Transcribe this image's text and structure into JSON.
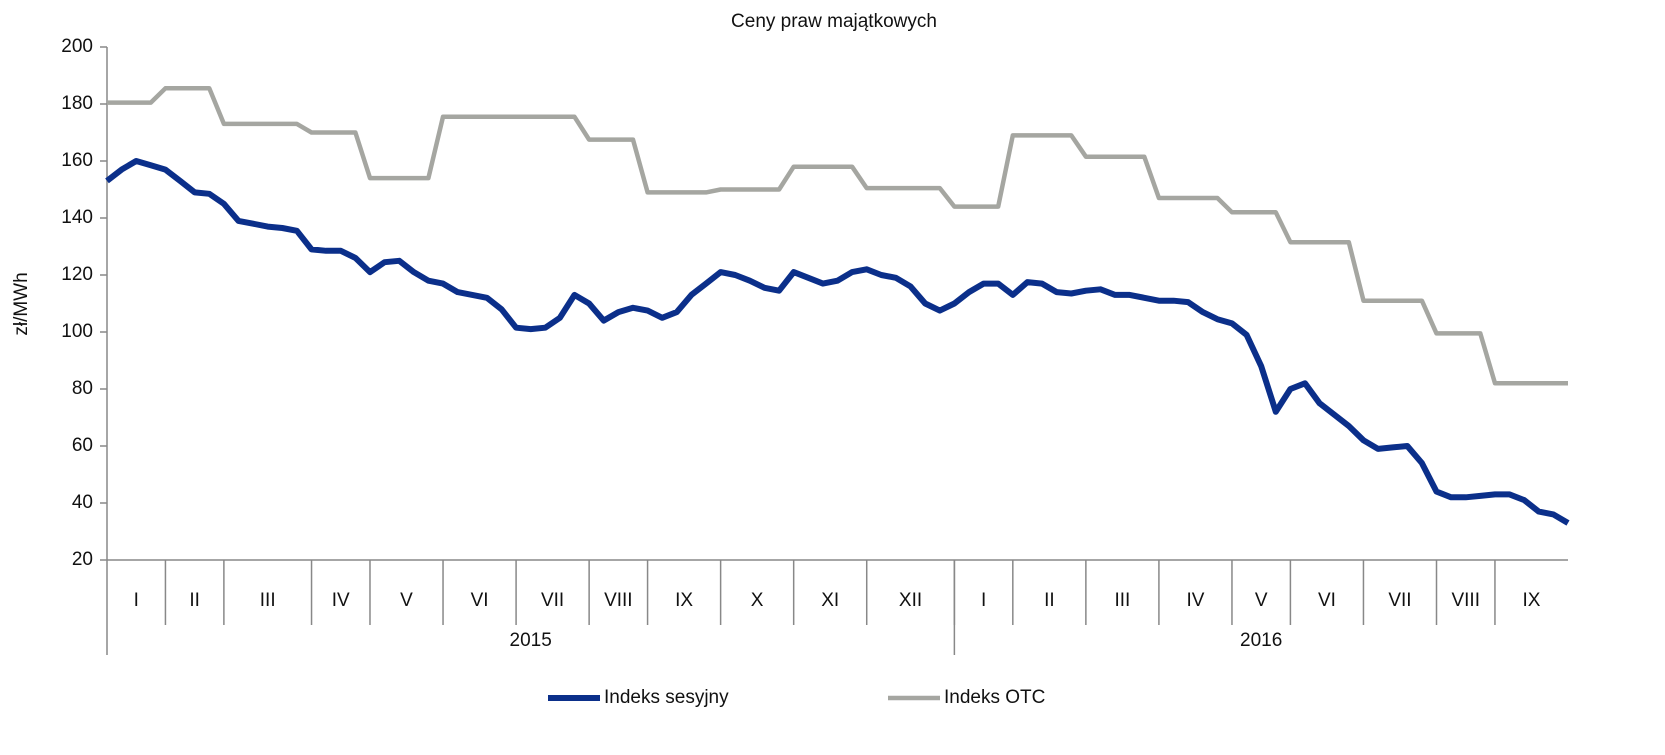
{
  "chart_data": {
    "type": "line",
    "title": "Ceny praw majątkowych",
    "y_label": "zł/MWh",
    "categories": [
      "I",
      null,
      null,
      null,
      "II",
      null,
      null,
      null,
      "III",
      null,
      null,
      null,
      null,
      null,
      "IV",
      null,
      null,
      null,
      "V",
      null,
      null,
      null,
      null,
      "VI",
      null,
      null,
      null,
      null,
      "VII",
      null,
      null,
      null,
      null,
      "VIII",
      null,
      null,
      null,
      "IX",
      null,
      null,
      null,
      null,
      "X",
      null,
      null,
      null,
      null,
      "XI",
      null,
      null,
      null,
      null,
      "XII",
      null,
      null,
      null,
      null,
      null,
      "I",
      null,
      null,
      null,
      "II",
      null,
      null,
      null,
      null,
      "III",
      null,
      null,
      null,
      null,
      "IV",
      null,
      null,
      null,
      null,
      "V",
      null,
      null,
      null,
      "VI",
      null,
      null,
      null,
      null,
      "VII",
      null,
      null,
      null,
      null,
      "VIII",
      null,
      null,
      null,
      "IX",
      null,
      null,
      null,
      null,
      null
    ],
    "years": [
      "2015",
      null,
      null,
      null,
      null,
      null,
      null,
      null,
      null,
      null,
      null,
      null,
      null,
      null,
      null,
      null,
      null,
      null,
      null,
      null,
      null,
      null,
      null,
      null,
      null,
      null,
      null,
      null,
      null,
      null,
      null,
      null,
      null,
      null,
      null,
      null,
      null,
      null,
      null,
      null,
      null,
      null,
      null,
      null,
      null,
      null,
      null,
      null,
      null,
      null,
      null,
      null,
      null,
      null,
      null,
      null,
      null,
      null,
      "2016",
      null,
      null,
      null,
      null,
      null,
      null,
      null,
      null,
      null,
      null,
      null,
      null,
      null,
      null,
      null,
      null,
      null,
      null,
      null,
      null,
      null,
      null,
      null,
      null,
      null,
      null,
      null,
      null,
      null,
      null,
      null,
      null,
      null,
      null,
      null,
      null,
      null,
      null,
      null,
      null,
      null,
      null,
      null
    ],
    "series": [
      {
        "name": "Indeks sesyjny",
        "color": "#0b2f8a",
        "values": [
          153,
          157,
          160,
          158.5,
          157,
          153,
          149,
          148.5,
          145,
          139,
          138,
          137,
          136.5,
          135.5,
          129,
          128.5,
          128.5,
          126,
          121,
          124.5,
          125,
          121,
          118,
          117,
          114,
          113,
          112,
          108,
          101.5,
          101,
          101.5,
          105,
          113,
          110,
          104,
          107,
          108.5,
          107.5,
          105,
          107,
          113,
          117,
          121,
          120,
          118,
          115.5,
          114.5,
          121,
          119,
          117,
          118,
          121,
          122,
          120,
          119,
          116,
          110,
          107.5,
          110,
          114,
          117,
          117,
          113,
          117.5,
          117,
          114,
          113.5,
          114.5,
          115,
          113,
          113,
          112,
          111,
          111,
          110.5,
          107,
          104.5,
          103,
          99,
          88,
          72,
          80,
          82,
          75,
          71,
          67,
          62,
          59,
          59.5,
          60,
          54,
          44,
          42,
          42,
          42.5,
          43,
          43,
          41,
          37,
          36,
          33
        ]
      },
      {
        "name": "Indeks OTC",
        "color": "#a5a6a1",
        "values": [
          180.5,
          180.5,
          180.5,
          180.5,
          185.5,
          185.5,
          185.5,
          185.5,
          173,
          173,
          173,
          173,
          173,
          173,
          170,
          170,
          170,
          170,
          154,
          154,
          154,
          154,
          154,
          175.5,
          175.5,
          175.5,
          175.5,
          175.5,
          175.5,
          175.5,
          175.5,
          175.5,
          175.5,
          167.5,
          167.5,
          167.5,
          167.5,
          149,
          149,
          149,
          149,
          149,
          150,
          150,
          150,
          150,
          150,
          158,
          158,
          158,
          158,
          158,
          150.5,
          150.5,
          150.5,
          150.5,
          150.5,
          150.5,
          144,
          144,
          144,
          144,
          169,
          169,
          169,
          169,
          169,
          161.5,
          161.5,
          161.5,
          161.5,
          161.5,
          147,
          147,
          147,
          147,
          147,
          142,
          142,
          142,
          142,
          131.5,
          131.5,
          131.5,
          131.5,
          131.5,
          111,
          111,
          111,
          111,
          111,
          99.5,
          99.5,
          99.5,
          99.5,
          82,
          82,
          82,
          82,
          82,
          82
        ]
      }
    ],
    "ylim": [
      20,
      200
    ],
    "yticks": [
      20,
      40,
      60,
      80,
      100,
      120,
      140,
      160,
      180,
      200
    ],
    "legend": "bottom"
  }
}
